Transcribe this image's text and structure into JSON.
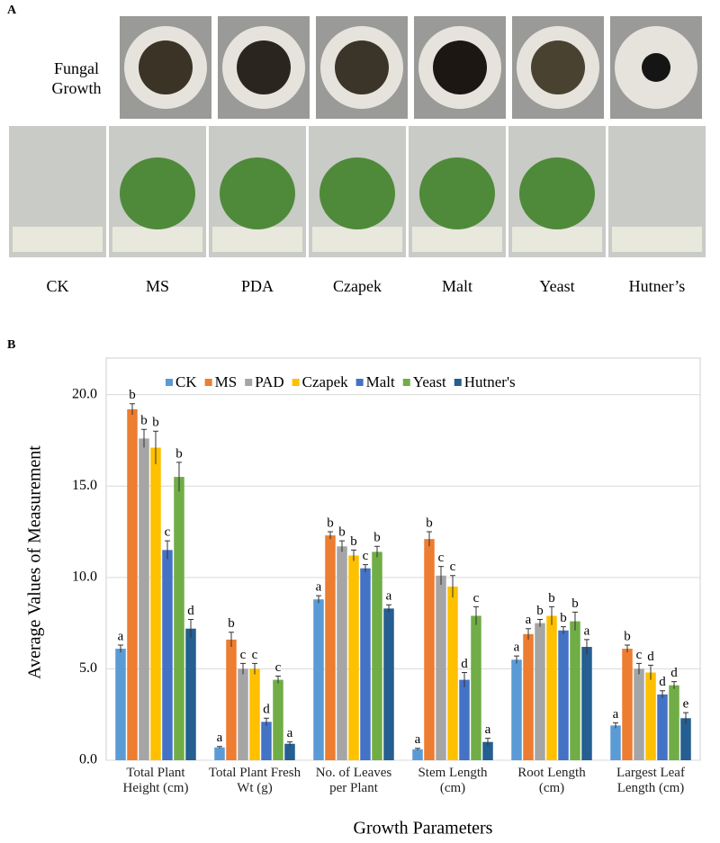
{
  "panel_a": {
    "label": "A",
    "fungal_label": "Fungal Growth",
    "labels": [
      "CK",
      "MS",
      "PDA",
      "Czapek",
      "Malt",
      "Yeast",
      "Hutner’s"
    ]
  },
  "chart_data": {
    "type": "bar",
    "panel_label": "B",
    "x_label": "Growth Parameters",
    "y_label": "Average Values of Measurement",
    "categories": [
      "Total Plant Height (cm)",
      "Total Plant Fresh Wt (g)",
      "No. of Leaves per Plant",
      "Stem Length (cm)",
      "Root Length (cm)",
      "Largest Leaf Length (cm)"
    ],
    "ylim": [
      0,
      22
    ],
    "yticks": [
      {
        "value": 0,
        "label": "0.0"
      },
      {
        "value": 5,
        "label": "5.0"
      },
      {
        "value": 10,
        "label": "10.0"
      },
      {
        "value": 15,
        "label": "15.0"
      },
      {
        "value": 20,
        "label": "20.0"
      }
    ],
    "grid": true,
    "legend": "top",
    "series": [
      {
        "name": "CK",
        "color": "#5b9bd5",
        "values": [
          6.1,
          0.7,
          8.8,
          0.6,
          5.5,
          1.9
        ],
        "errors": [
          0.2,
          0.05,
          0.2,
          0.05,
          0.2,
          0.15
        ],
        "letters": [
          "a",
          "a",
          "a",
          "a",
          "a",
          "a"
        ]
      },
      {
        "name": "MS",
        "color": "#ed7d31",
        "values": [
          19.2,
          6.6,
          12.3,
          12.1,
          6.9,
          6.1
        ],
        "errors": [
          0.3,
          0.4,
          0.2,
          0.4,
          0.3,
          0.2
        ],
        "letters": [
          "b",
          "b",
          "b",
          "b",
          "a",
          "b"
        ]
      },
      {
        "name": "PAD",
        "color": "#a5a5a5",
        "values": [
          17.6,
          5.0,
          11.7,
          10.1,
          7.5,
          5.0
        ],
        "errors": [
          0.5,
          0.3,
          0.3,
          0.5,
          0.2,
          0.3
        ],
        "letters": [
          "b",
          "c",
          "b",
          "c",
          "b",
          "c"
        ]
      },
      {
        "name": "Czapek",
        "color": "#ffc000",
        "values": [
          17.1,
          5.0,
          11.2,
          9.5,
          7.9,
          4.8
        ],
        "errors": [
          0.9,
          0.3,
          0.3,
          0.6,
          0.5,
          0.4
        ],
        "letters": [
          "b",
          "c",
          "b",
          "c",
          "b",
          "d"
        ]
      },
      {
        "name": "Malt",
        "color": "#4472c4",
        "values": [
          11.5,
          2.1,
          10.5,
          4.4,
          7.1,
          3.6
        ],
        "errors": [
          0.5,
          0.2,
          0.2,
          0.4,
          0.2,
          0.2
        ],
        "letters": [
          "c",
          "d",
          "c",
          "d",
          "b",
          "d"
        ]
      },
      {
        "name": "Yeast",
        "color": "#70ad47",
        "values": [
          15.5,
          4.4,
          11.4,
          7.9,
          7.6,
          4.1
        ],
        "errors": [
          0.8,
          0.2,
          0.3,
          0.5,
          0.5,
          0.2
        ],
        "letters": [
          "b",
          "c",
          "b",
          "c",
          "b",
          "d"
        ]
      },
      {
        "name": "Hutner's",
        "color": "#255e91",
        "values": [
          7.2,
          0.9,
          8.3,
          1.0,
          6.2,
          2.3
        ],
        "errors": [
          0.5,
          0.1,
          0.2,
          0.2,
          0.4,
          0.3
        ],
        "letters": [
          "d",
          "a",
          "a",
          "a",
          "a",
          "e"
        ]
      }
    ]
  }
}
